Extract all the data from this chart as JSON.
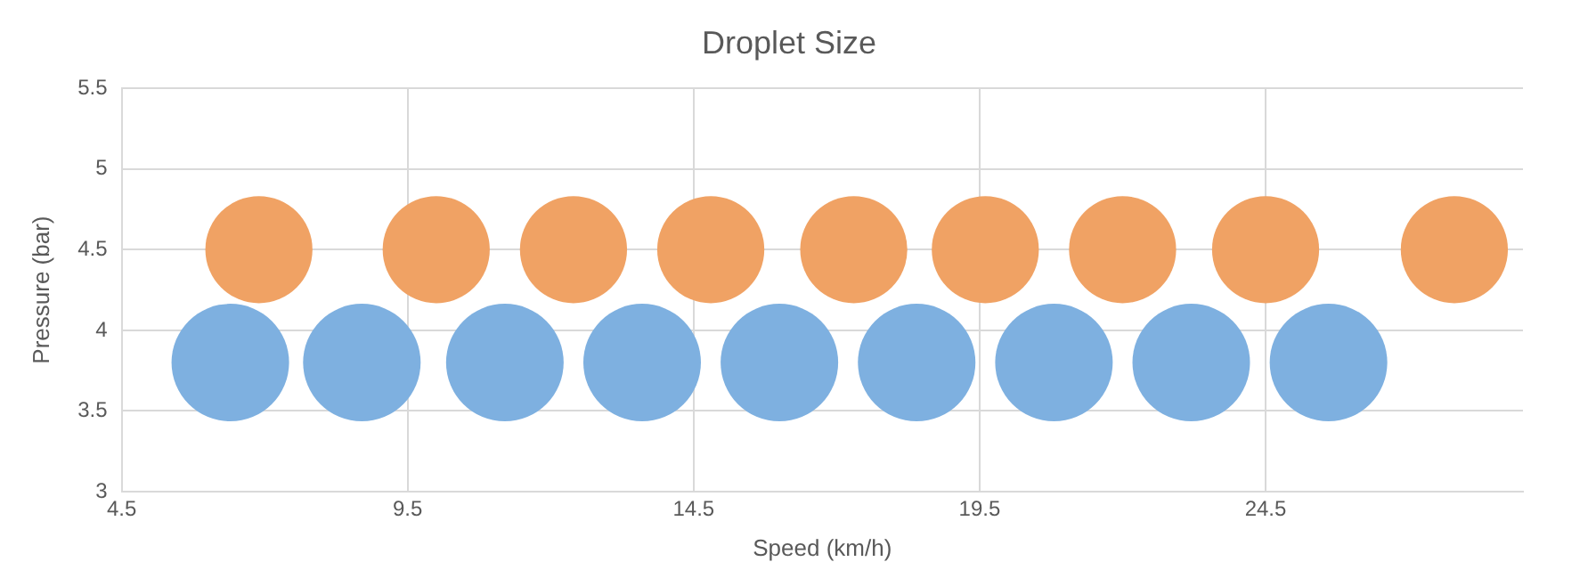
{
  "chart_data": {
    "type": "bubble",
    "title": "Droplet Size",
    "xlabel": "Speed (km/h)",
    "ylabel": "Pressure (bar)",
    "xlim": [
      4.5,
      29
    ],
    "xticks": [
      4.5,
      9.5,
      14.5,
      19.5,
      24.5
    ],
    "ylim": [
      3,
      5.5
    ],
    "yticks": [
      3,
      3.5,
      4,
      4.5,
      5,
      5.5
    ],
    "grid": true,
    "series": [
      {
        "color": "#f0a264",
        "x": [
          6.9,
          10,
          12.4,
          14.8,
          17.3,
          19.6,
          22,
          24.5,
          27.8
        ],
        "values": [
          4.5,
          4.5,
          4.5,
          4.5,
          4.5,
          4.5,
          4.5,
          4.5,
          4.5
        ],
        "sizes": [
          0.83,
          0.83,
          0.83,
          0.83,
          0.83,
          0.83,
          0.83,
          0.83,
          0.83
        ]
      },
      {
        "color": "#7eb0e0",
        "x": [
          6.4,
          8.7,
          11.2,
          13.6,
          16,
          18.4,
          20.8,
          23.2,
          25.6
        ],
        "values": [
          3.8,
          3.8,
          3.8,
          3.8,
          3.8,
          3.8,
          3.8,
          3.8,
          3.8
        ],
        "sizes": [
          1,
          1,
          1,
          1,
          1,
          1,
          1,
          1,
          1
        ]
      }
    ]
  }
}
